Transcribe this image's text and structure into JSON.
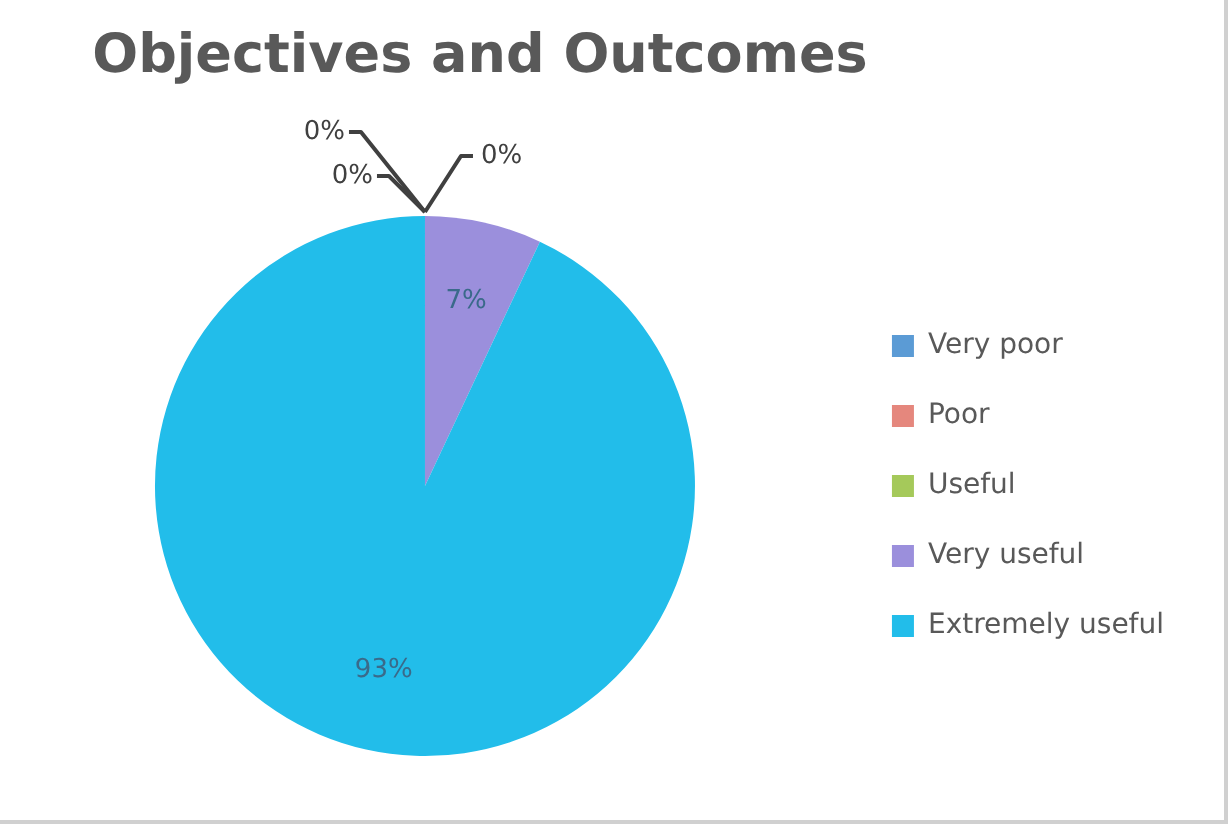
{
  "chart_data": {
    "type": "pie",
    "title": "Objectives and Outcomes",
    "categories": [
      "Very poor",
      "Poor",
      "Useful",
      "Very useful",
      "Extremely useful"
    ],
    "values": [
      0,
      0,
      0,
      7,
      93
    ],
    "colors": [
      "#5b9bd5",
      "#e5877d",
      "#a5c95a",
      "#9b8fdc",
      "#22bdea"
    ],
    "value_labels": [
      "0%",
      "0%",
      "0%",
      "7%",
      "93%"
    ],
    "legend": "right"
  }
}
